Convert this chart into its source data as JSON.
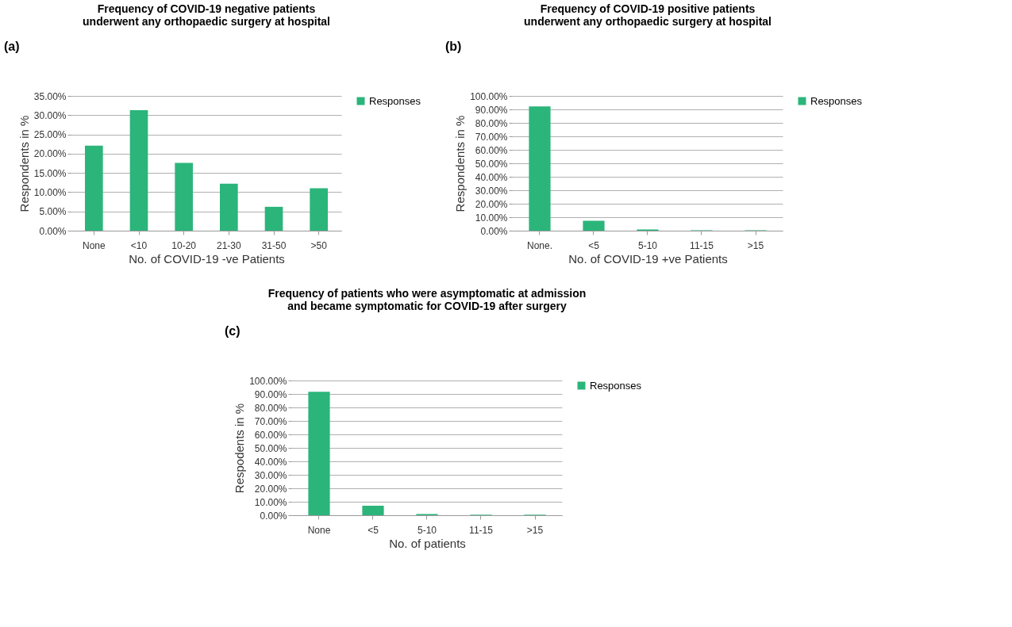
{
  "chart_data": [
    {
      "type": "bar",
      "title": "Frequency of COVID-19 negative patients underwent any orthopaedic surgery at hospital",
      "xlabel": "No. of COVID-19 -ve Patients",
      "ylabel": "Respondents in %",
      "annotations": [
        "(a)"
      ],
      "categories": [
        "None",
        "<10",
        "10-20",
        "21-30",
        "31-50",
        ">50"
      ],
      "series": [
        {
          "name": "Responses",
          "color": "#2bb57a",
          "values": [
            22.1,
            31.3,
            17.6,
            12.2,
            6.2,
            11.0
          ]
        }
      ],
      "ylim": [
        0,
        35
      ],
      "yticks": [
        {
          "value": 0,
          "label": "0.00%"
        },
        {
          "value": 5,
          "label": "5.00%"
        },
        {
          "value": 10,
          "label": "10.00%"
        },
        {
          "value": 15,
          "label": "15.00%"
        },
        {
          "value": 20,
          "label": "20.00%"
        },
        {
          "value": 25,
          "label": "25.00%"
        },
        {
          "value": 30,
          "label": "30.00%"
        },
        {
          "value": 35,
          "label": "35.00%"
        }
      ],
      "grid": "y",
      "legend": "right"
    },
    {
      "type": "bar",
      "title": "Frequency of COVID-19 positive patients underwent any orthopaedic surgery at hospital",
      "xlabel": "No. of COVID-19 +ve Patients",
      "ylabel": "Respondents in %",
      "annotations": [
        "(b)"
      ],
      "categories": [
        "None.",
        "<5",
        "5-10",
        "11-15",
        ">15"
      ],
      "series": [
        {
          "name": "Responses",
          "color": "#2bb57a",
          "values": [
            92.2,
            7.3,
            0.9,
            0.3,
            0.3
          ]
        }
      ],
      "ylim": [
        0,
        100
      ],
      "yticks": [
        {
          "value": 0,
          "label": "0.00%"
        },
        {
          "value": 10,
          "label": "10.00%"
        },
        {
          "value": 20,
          "label": "20.00%"
        },
        {
          "value": 30,
          "label": "30.00%"
        },
        {
          "value": 40,
          "label": "40.00%"
        },
        {
          "value": 50,
          "label": "50.00%"
        },
        {
          "value": 60,
          "label": "60.00%"
        },
        {
          "value": 70,
          "label": "70.00%"
        },
        {
          "value": 80,
          "label": "80.00%"
        },
        {
          "value": 90,
          "label": "90.00%"
        },
        {
          "value": 100,
          "label": "100.00%"
        }
      ],
      "grid": "y",
      "legend": "right"
    },
    {
      "type": "bar",
      "title": "Frequency of patients who were asymptomatic at admission and became symptomatic for COVID-19 after surgery",
      "xlabel": "No. of patients",
      "ylabel": "Respodents in %",
      "annotations": [
        "(c)"
      ],
      "categories": [
        "None",
        "<5",
        "5-10",
        "11-15",
        ">15"
      ],
      "series": [
        {
          "name": "Responses",
          "color": "#2bb57a",
          "values": [
            91.6,
            7.1,
            0.9,
            0.4,
            0.4
          ]
        }
      ],
      "ylim": [
        0,
        100
      ],
      "yticks": [
        {
          "value": 0,
          "label": "0.00%"
        },
        {
          "value": 10,
          "label": "10.00%"
        },
        {
          "value": 20,
          "label": "20.00%"
        },
        {
          "value": 30,
          "label": "30.00%"
        },
        {
          "value": 40,
          "label": "40.00%"
        },
        {
          "value": 50,
          "label": "50.00%"
        },
        {
          "value": 60,
          "label": "60.00%"
        },
        {
          "value": 70,
          "label": "70.00%"
        },
        {
          "value": 80,
          "label": "80.00%"
        },
        {
          "value": 90,
          "label": "90.00%"
        },
        {
          "value": 100,
          "label": "100.00%"
        }
      ],
      "grid": "y",
      "legend": "right"
    }
  ]
}
